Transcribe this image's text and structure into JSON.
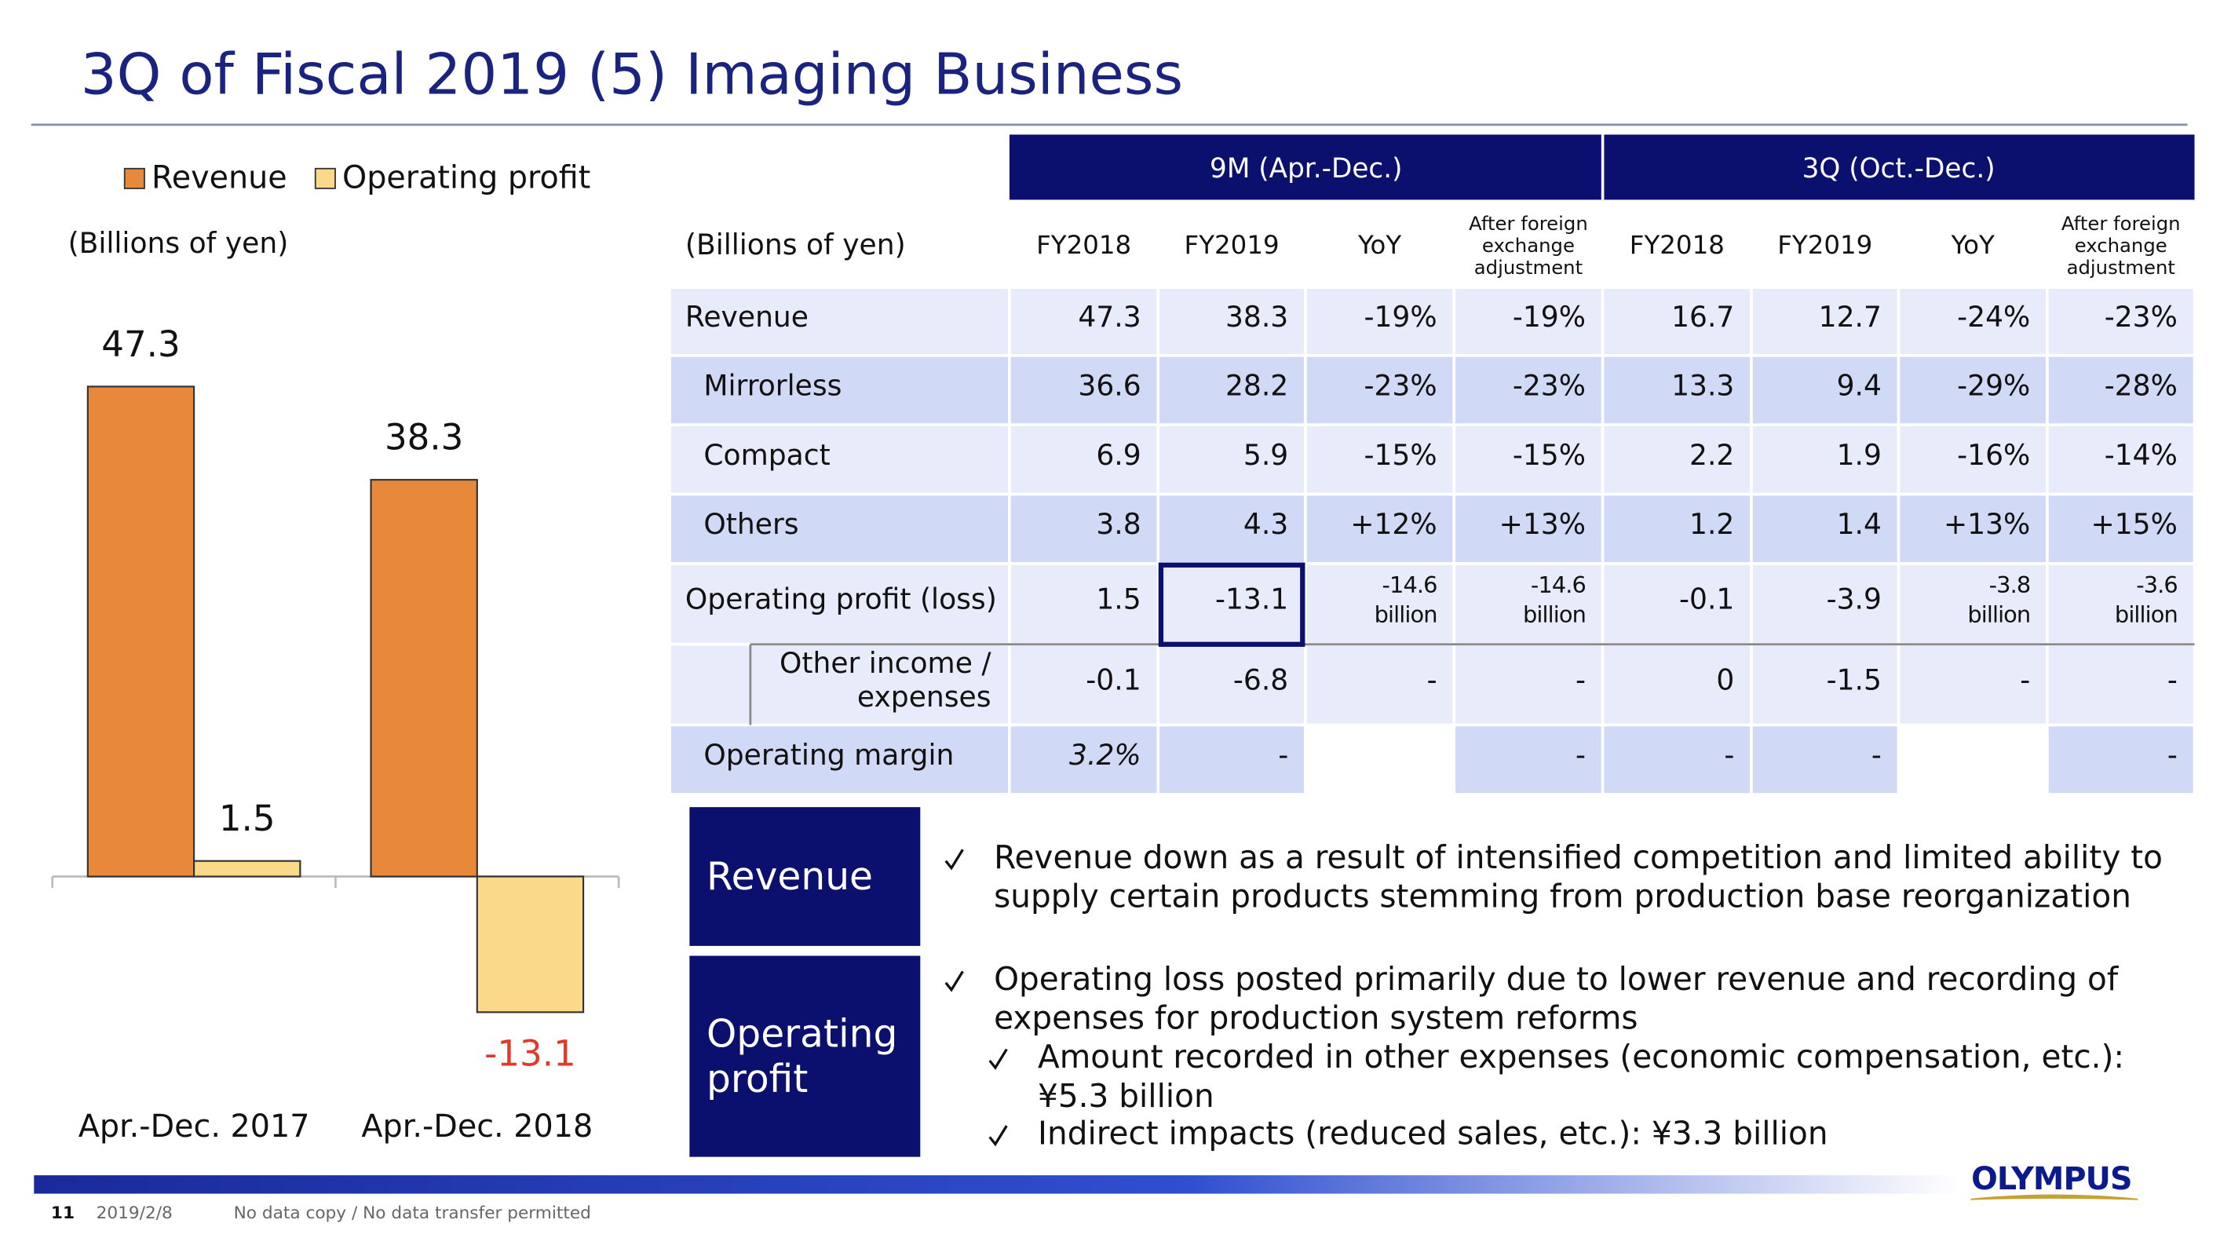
{
  "title": "3Q of Fiscal 2019 (5) Imaging Business",
  "chart_data": {
    "type": "bar",
    "unit": "(Billions of yen)",
    "categories": [
      "Apr.-Dec. 2017",
      "Apr.-Dec. 2018"
    ],
    "series": [
      {
        "name": "Revenue",
        "color": "#E8883A",
        "values": [
          47.3,
          38.3
        ]
      },
      {
        "name": "Operating profit",
        "color": "#FAD98A",
        "values": [
          1.5,
          -13.1
        ]
      }
    ],
    "negative_label_color": "#E03A2A",
    "ylim": [
      -20,
      50
    ]
  },
  "table": {
    "unit": "(Billions of yen)",
    "header_groups": [
      "9M (Apr.-Dec.)",
      "3Q (Oct.-Dec.)"
    ],
    "columns": [
      "FY2018",
      "FY2019",
      "YoY",
      [
        "After foreign",
        "exchange",
        "adjustment"
      ],
      "FY2018",
      "FY2019",
      "YoY",
      [
        "After foreign",
        "exchange",
        "adjustment"
      ]
    ],
    "rows": [
      {
        "label": "Revenue",
        "cells": [
          "47.3",
          "38.3",
          "-19%",
          "-19%",
          "16.7",
          "12.7",
          "-24%",
          "-23%"
        ]
      },
      {
        "label": "Mirrorless",
        "cells": [
          "36.6",
          "28.2",
          "-23%",
          "-23%",
          "13.3",
          "9.4",
          "-29%",
          "-28%"
        ]
      },
      {
        "label": "Compact",
        "cells": [
          "6.9",
          "5.9",
          "-15%",
          "-15%",
          "2.2",
          "1.9",
          "-16%",
          "-14%"
        ]
      },
      {
        "label": "Others",
        "cells": [
          "3.8",
          "4.3",
          "+12%",
          "+13%",
          "1.2",
          "1.4",
          "+13%",
          "+15%"
        ]
      },
      {
        "label": "Operating profit (loss)",
        "cells": [
          "1.5",
          "-13.1",
          [
            "-14.6",
            "billion"
          ],
          [
            "-14.6",
            "billion"
          ],
          "-0.1",
          "-3.9",
          [
            "-3.8",
            "billion"
          ],
          [
            "-3.6",
            "billion"
          ]
        ]
      },
      {
        "label": [
          "Other income /",
          "expenses"
        ],
        "cells": [
          "-0.1",
          "-6.8",
          "-",
          "-",
          "0",
          "-1.5",
          "-",
          "-"
        ]
      },
      {
        "label": "Operating margin",
        "cells": [
          "3.2%",
          "-",
          null,
          "-",
          "-",
          "-",
          null,
          "-"
        ]
      }
    ]
  },
  "notes": [
    {
      "heading": [
        "Revenue"
      ],
      "bullets": [
        {
          "level": 0,
          "lines": [
            "Revenue down as a result of intensified competition and limited ability to",
            "supply certain products stemming from production base reorganization"
          ]
        }
      ]
    },
    {
      "heading": [
        "Operating",
        "profit"
      ],
      "bullets": [
        {
          "level": 0,
          "lines": [
            "Operating loss posted primarily due to lower revenue and recording of",
            "expenses for production system reforms"
          ]
        },
        {
          "level": 1,
          "lines": [
            "Amount recorded in other expenses (economic compensation, etc.):",
            "¥5.3 billion"
          ]
        },
        {
          "level": 1,
          "lines": [
            "Indirect impacts (reduced sales, etc.): ¥3.3 billion"
          ]
        }
      ]
    }
  ],
  "footer": {
    "page": "11",
    "date": "2019/2/8",
    "notice": "No data copy / No data transfer permitted",
    "logo": "OLYMPUS"
  }
}
